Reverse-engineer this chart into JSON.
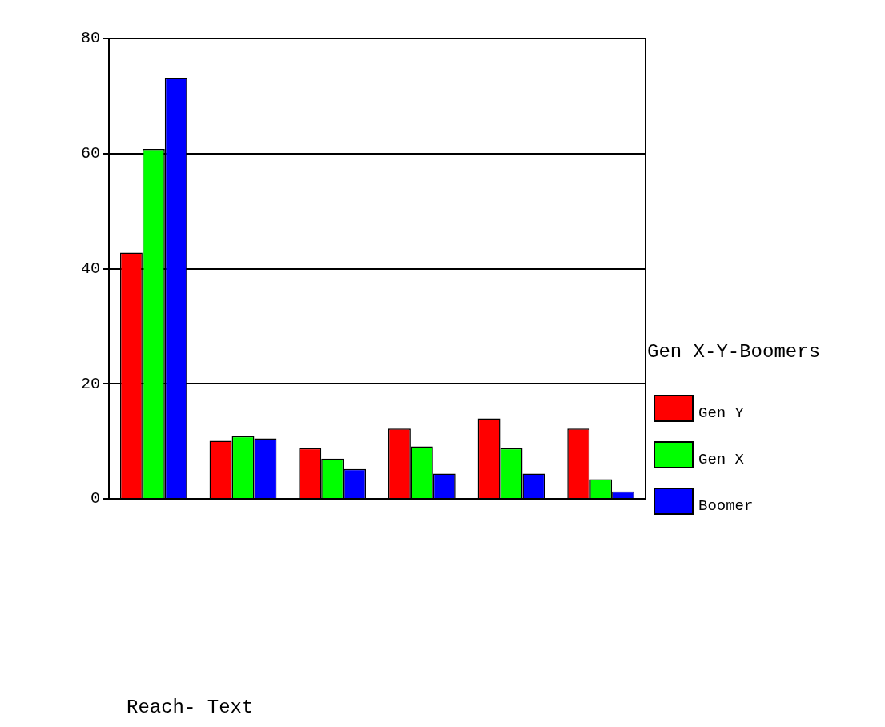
{
  "chart_data": {
    "type": "bar",
    "annotations": [
      "Reach- Text"
    ],
    "legend_title": "Gen X-Y-Boomers",
    "categories": [
      null,
      null,
      null,
      null,
      null,
      null
    ],
    "series": [
      {
        "name": "Gen Y",
        "color": "#ff0000",
        "values": [
          42.8,
          10.1,
          8.8,
          12.2,
          14.0,
          12.2
        ]
      },
      {
        "name": "Gen X",
        "color": "#00ff00",
        "values": [
          60.8,
          10.9,
          7.0,
          9.1,
          8.8,
          3.4
        ]
      },
      {
        "name": "Boomer",
        "color": "#0000ff",
        "values": [
          73.1,
          10.5,
          5.2,
          4.4,
          4.4,
          1.3
        ]
      }
    ],
    "ylim": [
      0,
      80
    ],
    "yticks": [
      0,
      20,
      40,
      60,
      80
    ],
    "grid": "y",
    "legend": "right"
  }
}
